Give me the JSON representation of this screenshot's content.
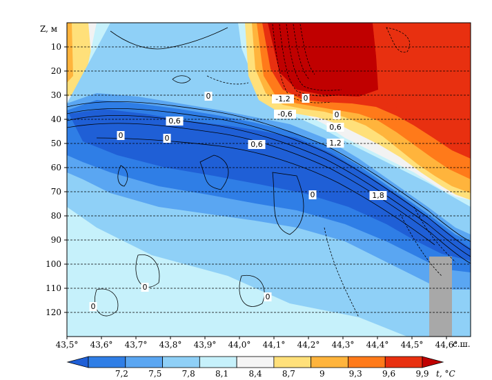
{
  "chart_data": {
    "type": "heatmap",
    "title": "",
    "ylabel": "Z, м",
    "xlabel_suffix": "с.ш.",
    "xticks": [
      "43,5°",
      "43,6°",
      "43,7°",
      "43,8°",
      "43,9°",
      "44,0°",
      "44,1°",
      "44,2°",
      "44,3°",
      "44,4°",
      "44,5°",
      "44,6°"
    ],
    "x_values": [
      43.5,
      43.6,
      43.7,
      43.8,
      43.9,
      44.0,
      44.1,
      44.2,
      44.3,
      44.4,
      44.5,
      44.6
    ],
    "xlim": [
      43.5,
      44.67
    ],
    "yticks": [
      "10",
      "20",
      "30",
      "40",
      "50",
      "60",
      "70",
      "80",
      "90",
      "100",
      "110",
      "120"
    ],
    "y_values": [
      10,
      20,
      30,
      40,
      50,
      60,
      70,
      80,
      90,
      100,
      110,
      120
    ],
    "ylim": [
      0,
      130
    ],
    "y_inverted": true,
    "grid": "horizontal dashed at each 10 m",
    "colorbar": {
      "label": "t, °C",
      "ticks": [
        "7,2",
        "7,5",
        "7,8",
        "8,1",
        "8,4",
        "8,7",
        "9",
        "9,3",
        "9,6",
        "9,9"
      ],
      "tick_values": [
        7.2,
        7.5,
        7.8,
        8.1,
        8.4,
        8.7,
        9.0,
        9.3,
        9.6,
        9.9
      ],
      "colors": [
        "#1f5fd6",
        "#2f7ee6",
        "#5aa6f2",
        "#8fd0f7",
        "#c6f1fb",
        "#f5f5f5",
        "#ffe07a",
        "#ffb43c",
        "#ff7a1a",
        "#e83010",
        "#c00000"
      ]
    },
    "contour_labels": [
      "0",
      "0,6",
      "0",
      "0",
      "0,6",
      "0",
      "-1,2",
      "-0,6",
      "0",
      "0,6",
      "1,2",
      "0",
      "1,8",
      "0",
      "0",
      "0"
    ],
    "bottom_topography": {
      "x_start": 44.56,
      "x_end": 44.63,
      "depth_top": 97
    }
  }
}
